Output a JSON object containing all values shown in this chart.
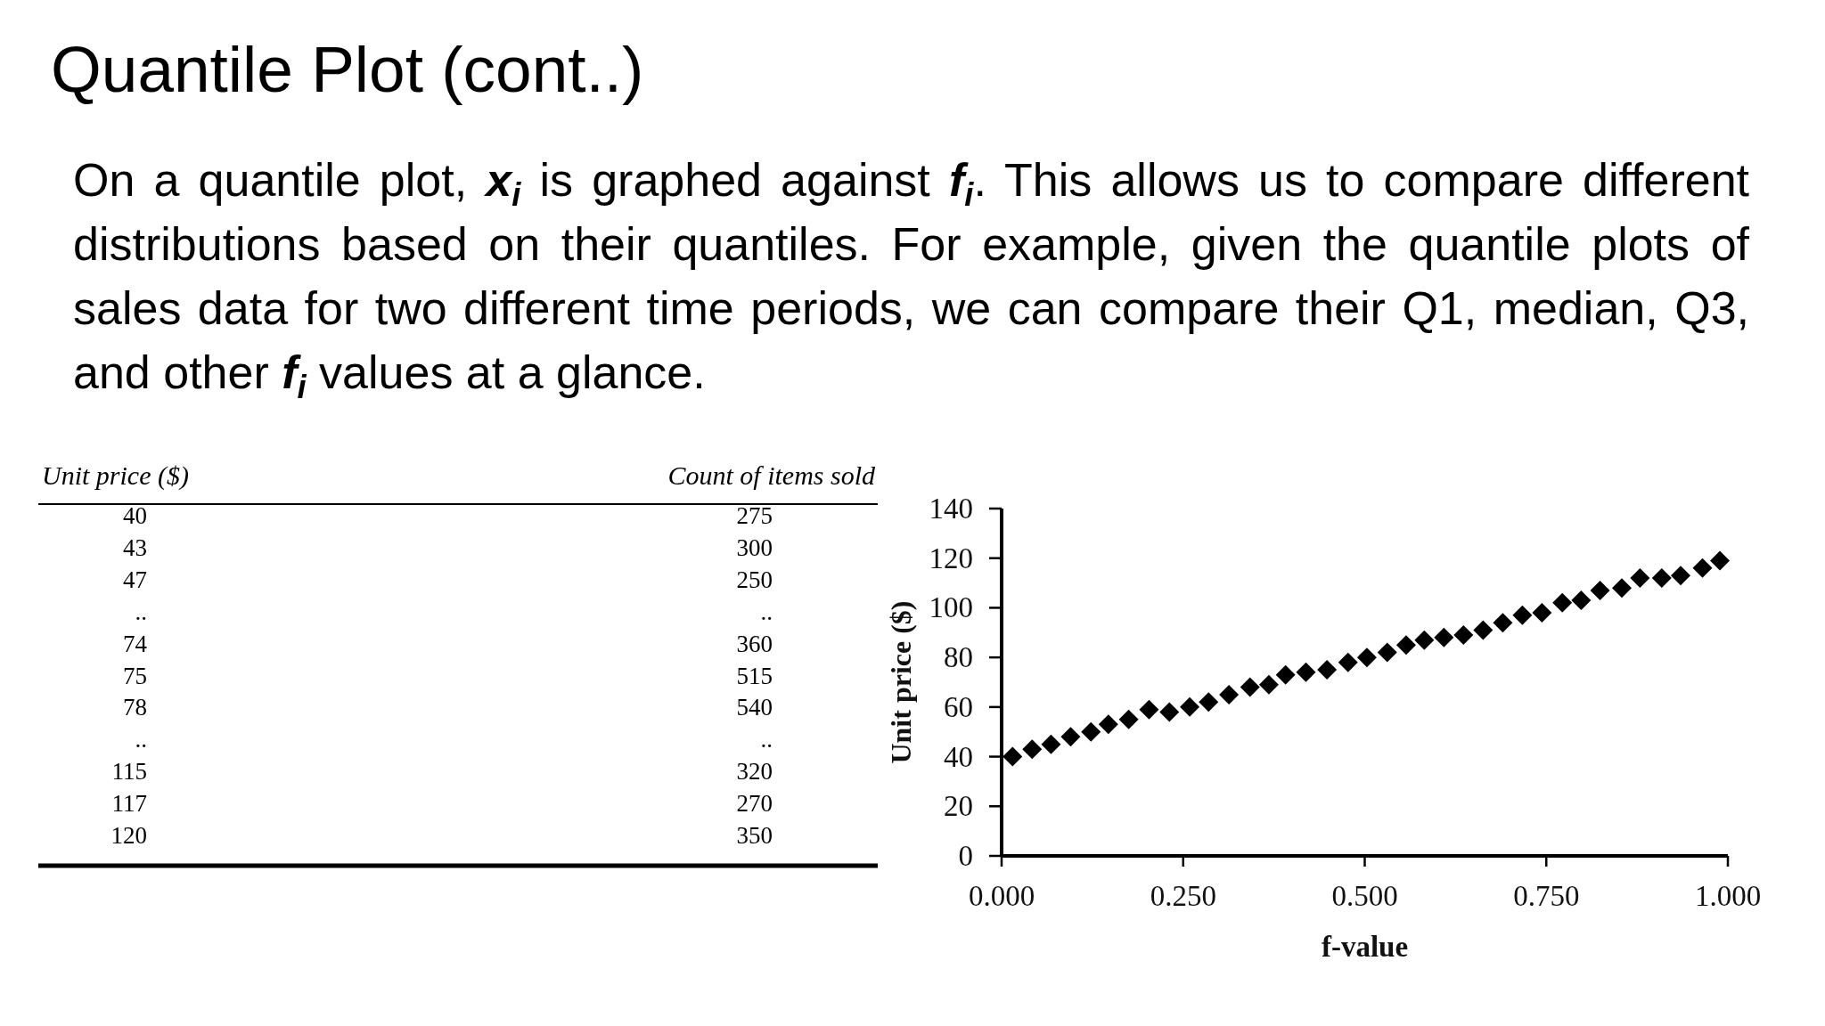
{
  "chart_data": [
    {
      "type": "other",
      "title": "Quantile Plot (cont..)",
      "subtitle": "On a quantile plot, x$_{i}$ is graphed against f$_{i}$. This allows us to compare different distributions based on their quantiles. For example, given the quantile plots of sales data for two different time periods, we can compare their Q1, median, Q3, and other f$_{i}$ values at a glance.",
      "annotations": [
        "Unit price ($)",
        "Count of items sold",
        "40",
        "275",
        "43",
        "300",
        "47",
        "250",
        "..",
        "..",
        "74",
        "360",
        "75",
        "515",
        "78",
        "540",
        "..",
        "..",
        "115",
        "320",
        "117",
        "270",
        "120",
        "350"
      ]
    },
    {
      "type": "scatter",
      "xlabel": "f-value",
      "ylabel": "Unit price ($)",
      "color": "#000000",
      "marker": "diamond",
      "x": [
        0.015,
        0.042,
        0.068,
        0.095,
        0.123,
        0.147,
        0.175,
        0.203,
        0.231,
        0.259,
        0.285,
        0.313,
        0.342,
        0.368,
        0.391,
        0.419,
        0.448,
        0.477,
        0.503,
        0.531,
        0.557,
        0.582,
        0.609,
        0.636,
        0.663,
        0.69,
        0.717,
        0.744,
        0.772,
        0.798,
        0.824,
        0.854,
        0.879,
        0.909,
        0.935,
        0.965,
        0.989
      ],
      "values": [
        40,
        43,
        45,
        48,
        50,
        53,
        55,
        59,
        58,
        60,
        62,
        65,
        68,
        69,
        73,
        74,
        75,
        78,
        80,
        82,
        85,
        87,
        88,
        89,
        91,
        94,
        97,
        98,
        102,
        103,
        107,
        108,
        112,
        112,
        113,
        116,
        119
      ],
      "xlim": [
        0,
        1
      ],
      "xticks": [
        {
          "value": 0,
          "label": "0.000"
        },
        {
          "value": 0.25,
          "label": "0.250"
        },
        {
          "value": 0.5,
          "label": "0.500"
        },
        {
          "value": 0.75,
          "label": "0.750"
        },
        {
          "value": 1,
          "label": "1.000"
        }
      ],
      "ylim": [
        0,
        140
      ],
      "yticks": [
        0,
        20,
        40,
        60,
        80,
        100,
        120,
        140
      ]
    }
  ]
}
